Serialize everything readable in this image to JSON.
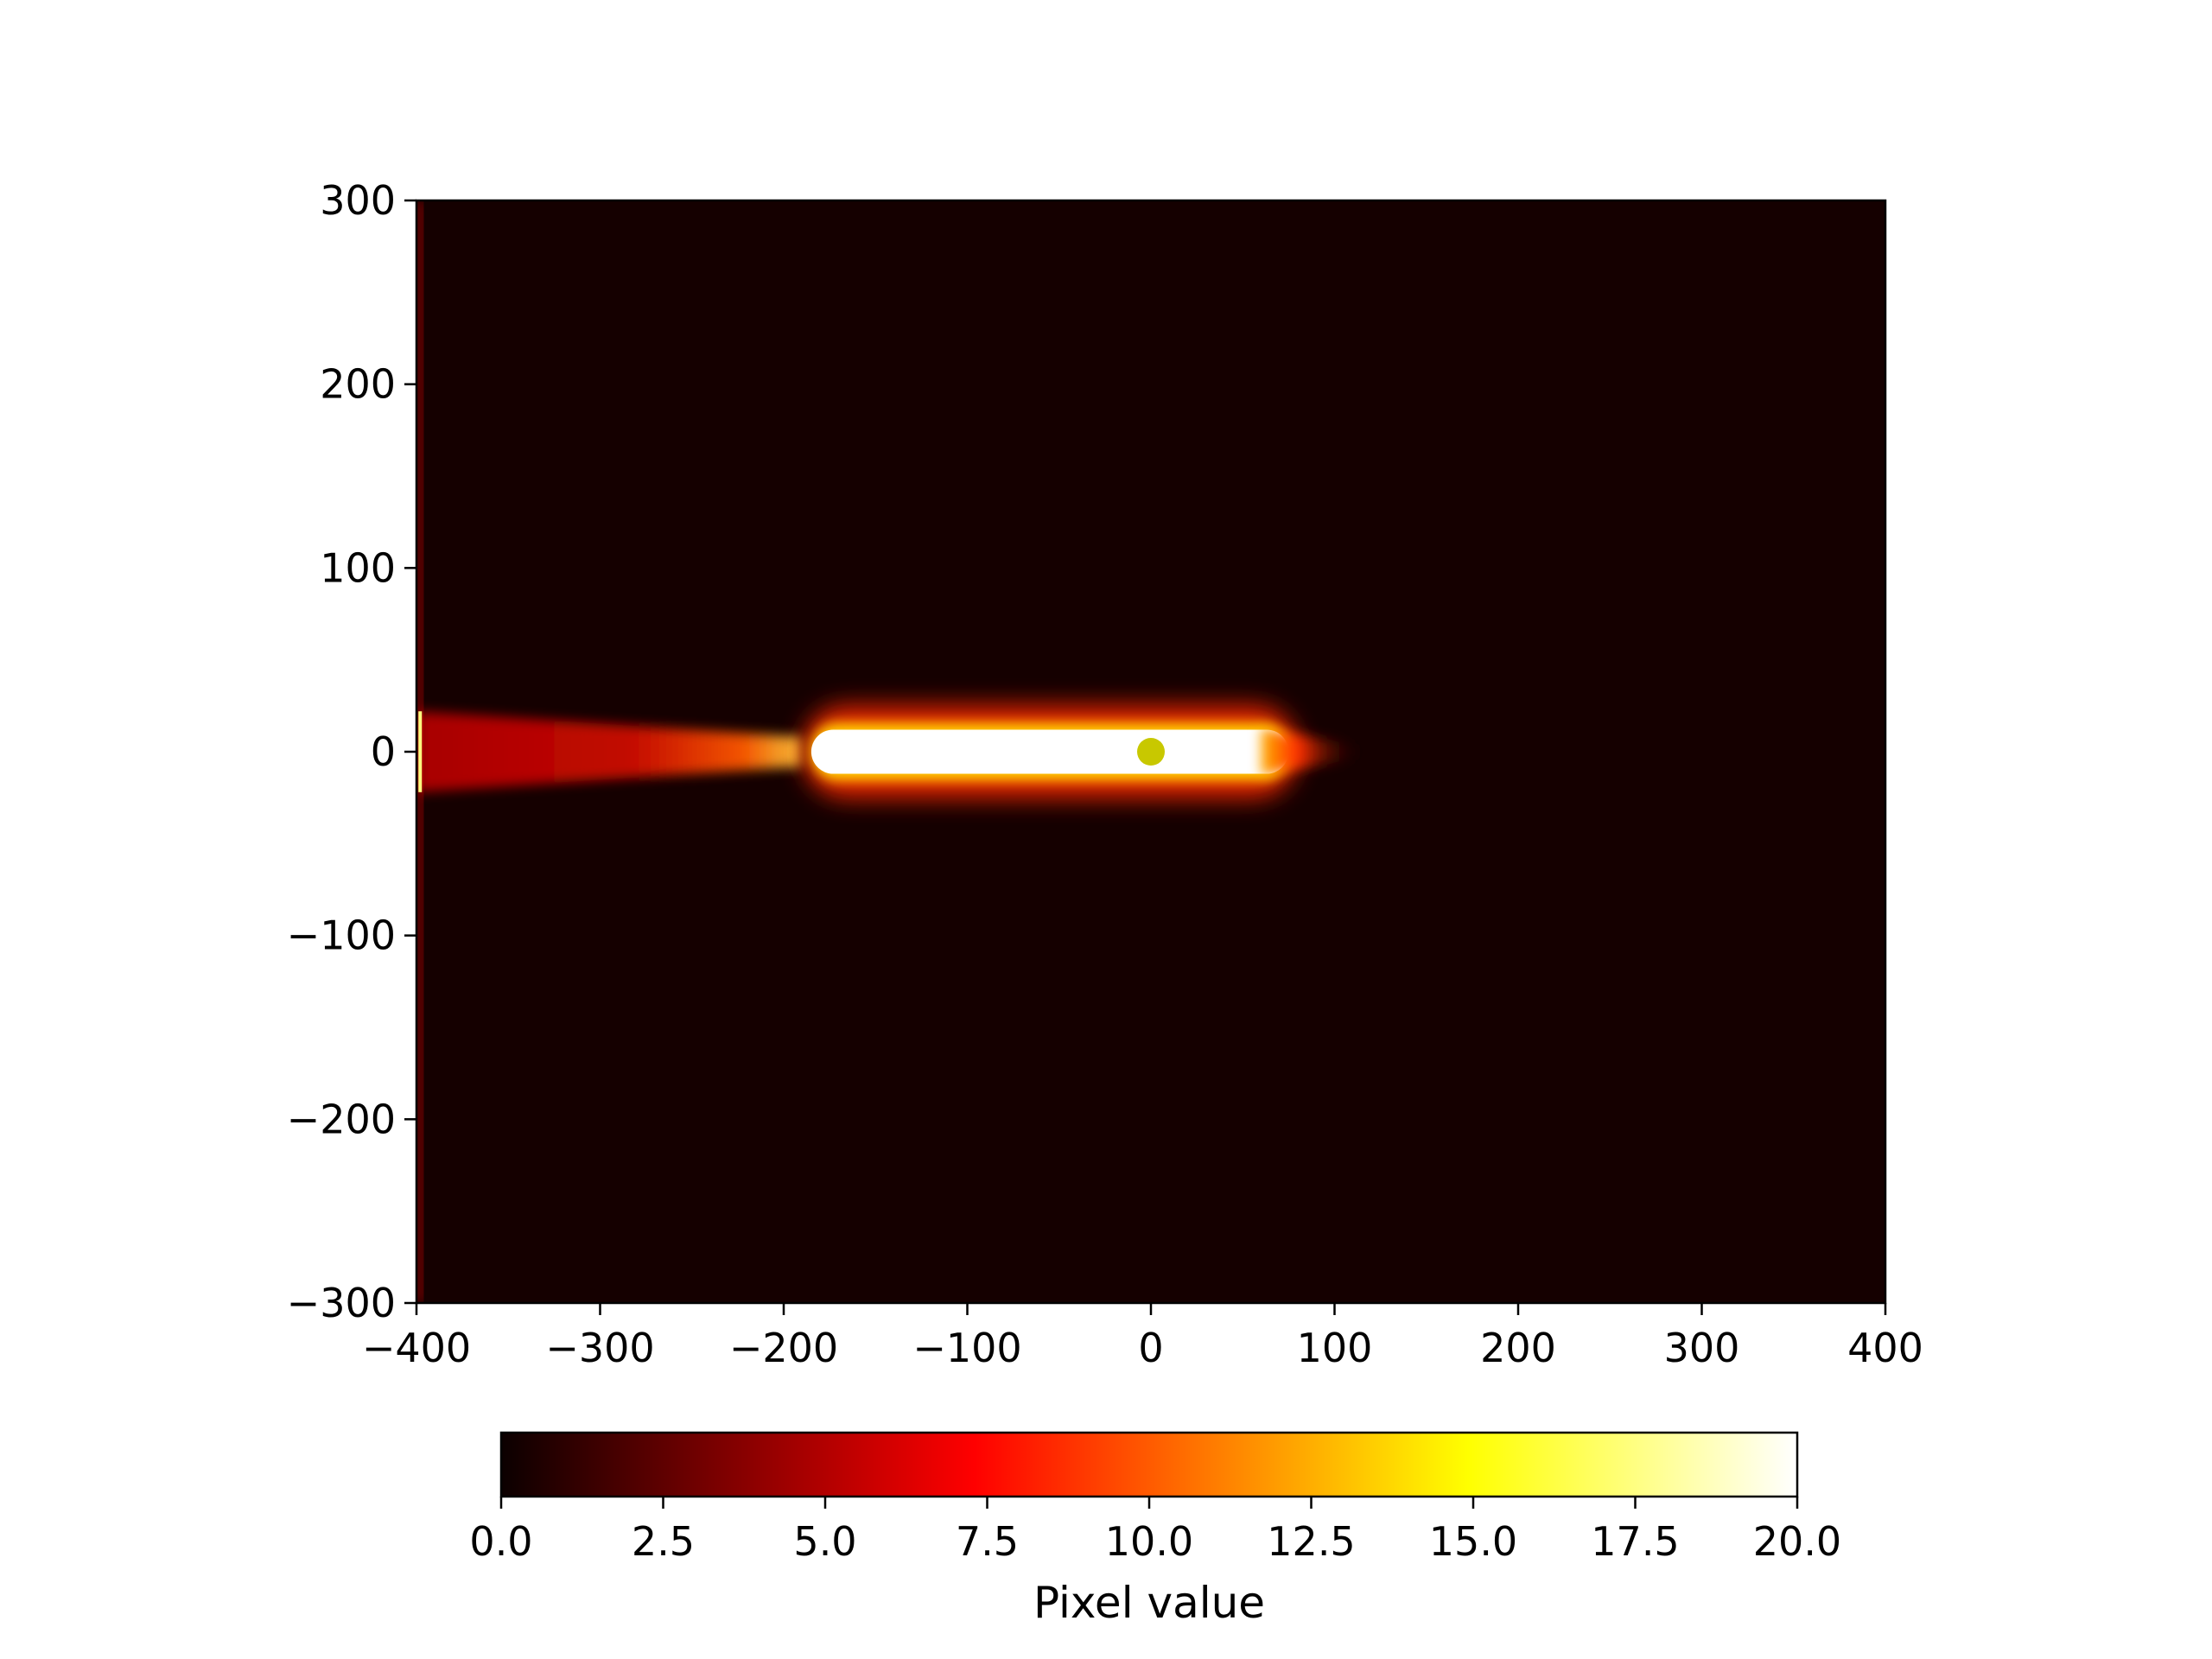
{
  "chart_data": {
    "type": "heatmap",
    "title": "",
    "xlabel": "",
    "ylabel": "",
    "xlim": [
      -400,
      400
    ],
    "ylim": [
      -300,
      300
    ],
    "xticks": [
      -400,
      -300,
      -200,
      -100,
      0,
      100,
      200,
      300,
      400
    ],
    "yticks": [
      -300,
      -200,
      -100,
      0,
      100,
      200,
      300
    ],
    "xtick_labels": [
      "−400",
      "−300",
      "−200",
      "−100",
      "0",
      "100",
      "200",
      "300",
      "400"
    ],
    "ytick_labels": [
      "−300",
      "−200",
      "−100",
      "0",
      "100",
      "200",
      "300"
    ],
    "grid": false,
    "colormap": "hot",
    "background_value": 0.3,
    "features": [
      {
        "kind": "tail",
        "x_start": -400,
        "x_end": -190,
        "y_halfwidth_at_start": 22,
        "y_halfwidth_at_end": 8,
        "value_at_start": 4.5,
        "value_at_end": 10
      },
      {
        "kind": "core",
        "x_start": -185,
        "x_end": 75,
        "y_halfwidth": 12,
        "value": 20
      },
      {
        "kind": "glow",
        "x_start": 60,
        "x_end": 115,
        "y_halfwidth": 8,
        "value_at_start": 12,
        "value_at_end": 1
      },
      {
        "kind": "edge",
        "x": -398,
        "y_start": -300,
        "y_end": 300,
        "value": 6
      }
    ],
    "marker": {
      "x": 0,
      "y": 0,
      "color": "#c8c800"
    },
    "colorbar": {
      "label": "Pixel value",
      "vmin": 0,
      "vmax": 20,
      "orientation": "horizontal",
      "ticks": [
        0,
        2.5,
        5,
        7.5,
        10,
        12.5,
        15,
        17.5,
        20
      ],
      "tick_labels": [
        "0.0",
        "2.5",
        "5.0",
        "7.5",
        "10.0",
        "12.5",
        "15.0",
        "17.5",
        "20.0"
      ]
    }
  }
}
